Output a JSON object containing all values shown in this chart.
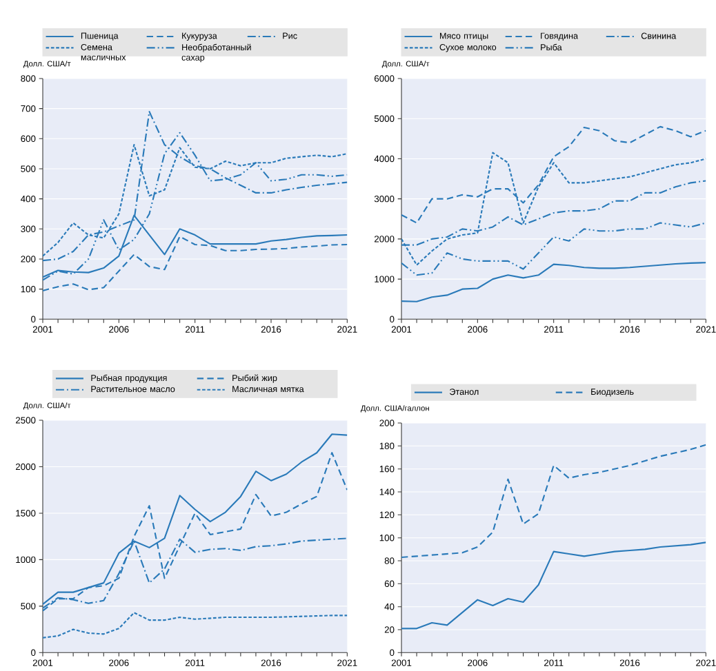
{
  "chart_data": [
    {
      "type": "line",
      "ylabel": "Долл. США/т",
      "legend": "top",
      "grid": "y",
      "x": [
        2001,
        2002,
        2003,
        2004,
        2005,
        2006,
        2007,
        2008,
        2009,
        2010,
        2011,
        2012,
        2013,
        2014,
        2015,
        2016,
        2017,
        2018,
        2019,
        2020,
        2021
      ],
      "xlim": [
        2001,
        2021
      ],
      "xticks": [
        2001,
        2006,
        2011,
        2016,
        2021
      ],
      "ylim": [
        0,
        800
      ],
      "yticks": [
        0,
        100,
        200,
        300,
        400,
        500,
        600,
        700,
        800
      ],
      "series": [
        {
          "name": "Пшеница",
          "color": "#2a7ab9",
          "line_style": "solid",
          "values": [
            140,
            162,
            157,
            155,
            170,
            210,
            345,
            280,
            215,
            300,
            280,
            250,
            250,
            250,
            250,
            260,
            265,
            272,
            277,
            278,
            280
          ]
        },
        {
          "name": "Кукуруза",
          "color": "#2a7ab9",
          "line_style": "dashed",
          "values": [
            95,
            108,
            117,
            98,
            105,
            160,
            215,
            175,
            165,
            275,
            248,
            245,
            228,
            228,
            232,
            233,
            235,
            240,
            243,
            247,
            248
          ]
        },
        {
          "name": "Рис",
          "color": "#2a7ab9",
          "line_style": "dashdot",
          "values": [
            195,
            200,
            225,
            280,
            290,
            310,
            330,
            690,
            580,
            540,
            510,
            500,
            470,
            445,
            420,
            420,
            430,
            438,
            445,
            450,
            455
          ]
        },
        {
          "name": "Семена масличных",
          "color": "#2a7ab9",
          "line_style": "dotted",
          "values": [
            210,
            255,
            320,
            280,
            270,
            350,
            580,
            410,
            430,
            570,
            505,
            500,
            525,
            510,
            520,
            520,
            535,
            540,
            545,
            540,
            550
          ]
        },
        {
          "name": "Необработанный сахар",
          "color": "#2a7ab9",
          "line_style": "dashdotdot",
          "values": [
            130,
            160,
            150,
            200,
            330,
            230,
            265,
            350,
            550,
            620,
            545,
            460,
            465,
            480,
            520,
            460,
            465,
            480,
            480,
            475,
            480
          ]
        }
      ]
    },
    {
      "type": "line",
      "ylabel": "Долл. США/т",
      "legend": "top",
      "grid": "y",
      "x": [
        2001,
        2002,
        2003,
        2004,
        2005,
        2006,
        2007,
        2008,
        2009,
        2010,
        2011,
        2012,
        2013,
        2014,
        2015,
        2016,
        2017,
        2018,
        2019,
        2020,
        2021
      ],
      "xlim": [
        2001,
        2021
      ],
      "xticks": [
        2001,
        2006,
        2011,
        2016,
        2021
      ],
      "ylim": [
        0,
        6000
      ],
      "yticks": [
        0,
        1000,
        2000,
        3000,
        4000,
        5000,
        6000
      ],
      "series": [
        {
          "name": "Мясо птицы",
          "color": "#2a7ab9",
          "line_style": "solid",
          "values": [
            450,
            440,
            550,
            600,
            750,
            770,
            1000,
            1100,
            1030,
            1100,
            1370,
            1340,
            1290,
            1270,
            1270,
            1290,
            1320,
            1350,
            1380,
            1400,
            1410
          ]
        },
        {
          "name": "Говядина",
          "color": "#2a7ab9",
          "line_style": "dashed",
          "values": [
            2600,
            2400,
            3000,
            3000,
            3100,
            3050,
            3250,
            3250,
            2900,
            3350,
            4050,
            4300,
            4780,
            4700,
            4450,
            4400,
            4600,
            4800,
            4700,
            4550,
            4700
          ]
        },
        {
          "name": "Свинина",
          "color": "#2a7ab9",
          "line_style": "dashdot",
          "values": [
            1850,
            1850,
            2000,
            2050,
            2250,
            2200,
            2300,
            2550,
            2350,
            2500,
            2650,
            2700,
            2700,
            2750,
            2950,
            2950,
            3150,
            3150,
            3300,
            3400,
            3450
          ]
        },
        {
          "name": "Сухое молоко",
          "color": "#2a7ab9",
          "line_style": "dotted",
          "values": [
            2000,
            1350,
            1700,
            2000,
            2100,
            2150,
            4150,
            3900,
            2400,
            3300,
            3900,
            3400,
            3400,
            3450,
            3500,
            3550,
            3650,
            3750,
            3850,
            3900,
            4000
          ]
        },
        {
          "name": "Рыба",
          "color": "#2a7ab9",
          "line_style": "dashdotdot",
          "values": [
            1400,
            1100,
            1150,
            1650,
            1500,
            1450,
            1450,
            1450,
            1250,
            1650,
            2050,
            1950,
            2250,
            2200,
            2200,
            2250,
            2250,
            2400,
            2350,
            2300,
            2400
          ]
        }
      ]
    },
    {
      "type": "line",
      "ylabel": "Долл. США/т",
      "legend": "top",
      "grid": "y",
      "x": [
        2001,
        2002,
        2003,
        2004,
        2005,
        2006,
        2007,
        2008,
        2009,
        2010,
        2011,
        2012,
        2013,
        2014,
        2015,
        2016,
        2017,
        2018,
        2019,
        2020,
        2021
      ],
      "xlim": [
        2001,
        2021
      ],
      "xticks": [
        2001,
        2006,
        2011,
        2016,
        2021
      ],
      "ylim": [
        0,
        2500
      ],
      "yticks": [
        0,
        500,
        1000,
        1500,
        2000,
        2500
      ],
      "series": [
        {
          "name": "Рыбная продукция",
          "color": "#2a7ab9",
          "line_style": "solid",
          "values": [
            520,
            650,
            650,
            700,
            750,
            1070,
            1200,
            1130,
            1230,
            1690,
            1540,
            1410,
            1510,
            1680,
            1950,
            1850,
            1920,
            2050,
            2150,
            2350,
            2340
          ]
        },
        {
          "name": "Рыбий жир",
          "color": "#2a7ab9",
          "line_style": "dashed",
          "values": [
            450,
            580,
            580,
            700,
            720,
            800,
            1250,
            1580,
            800,
            1150,
            1500,
            1270,
            1300,
            1330,
            1700,
            1470,
            1510,
            1600,
            1680,
            2150,
            1750
          ]
        },
        {
          "name": "Растительное масло",
          "color": "#2a7ab9",
          "line_style": "dashdot",
          "values": [
            480,
            590,
            570,
            530,
            560,
            850,
            1200,
            750,
            900,
            1220,
            1080,
            1110,
            1120,
            1100,
            1140,
            1150,
            1170,
            1200,
            1210,
            1220,
            1230
          ]
        },
        {
          "name": "Масличная мятка",
          "color": "#2a7ab9",
          "line_style": "dotted",
          "values": [
            160,
            180,
            250,
            210,
            200,
            260,
            430,
            350,
            350,
            380,
            360,
            370,
            380,
            380,
            380,
            380,
            385,
            390,
            395,
            400,
            400
          ]
        }
      ]
    },
    {
      "type": "line",
      "ylabel": "Долл. США/галлон",
      "legend": "top",
      "grid": "y",
      "x": [
        2001,
        2002,
        2003,
        2004,
        2005,
        2006,
        2007,
        2008,
        2009,
        2010,
        2011,
        2012,
        2013,
        2014,
        2015,
        2016,
        2017,
        2018,
        2019,
        2020,
        2021
      ],
      "xlim": [
        2001,
        2021
      ],
      "xticks": [
        2001,
        2006,
        2011,
        2016,
        2021
      ],
      "ylim": [
        0,
        200
      ],
      "yticks": [
        0,
        20,
        40,
        60,
        80,
        100,
        120,
        140,
        160,
        180,
        200
      ],
      "series": [
        {
          "name": "Этанол",
          "color": "#2a7ab9",
          "line_style": "solid",
          "values": [
            21,
            21,
            26,
            24,
            35,
            46,
            41,
            47,
            44,
            59,
            88,
            86,
            84,
            86,
            88,
            89,
            90,
            92,
            93,
            94,
            96
          ]
        },
        {
          "name": "Биодизель",
          "color": "#2a7ab9",
          "line_style": "dashed",
          "values": [
            83,
            84,
            85,
            86,
            87,
            92,
            105,
            151,
            112,
            121,
            163,
            152,
            155,
            157,
            160,
            163,
            167,
            171,
            174,
            177,
            181
          ]
        }
      ]
    }
  ]
}
